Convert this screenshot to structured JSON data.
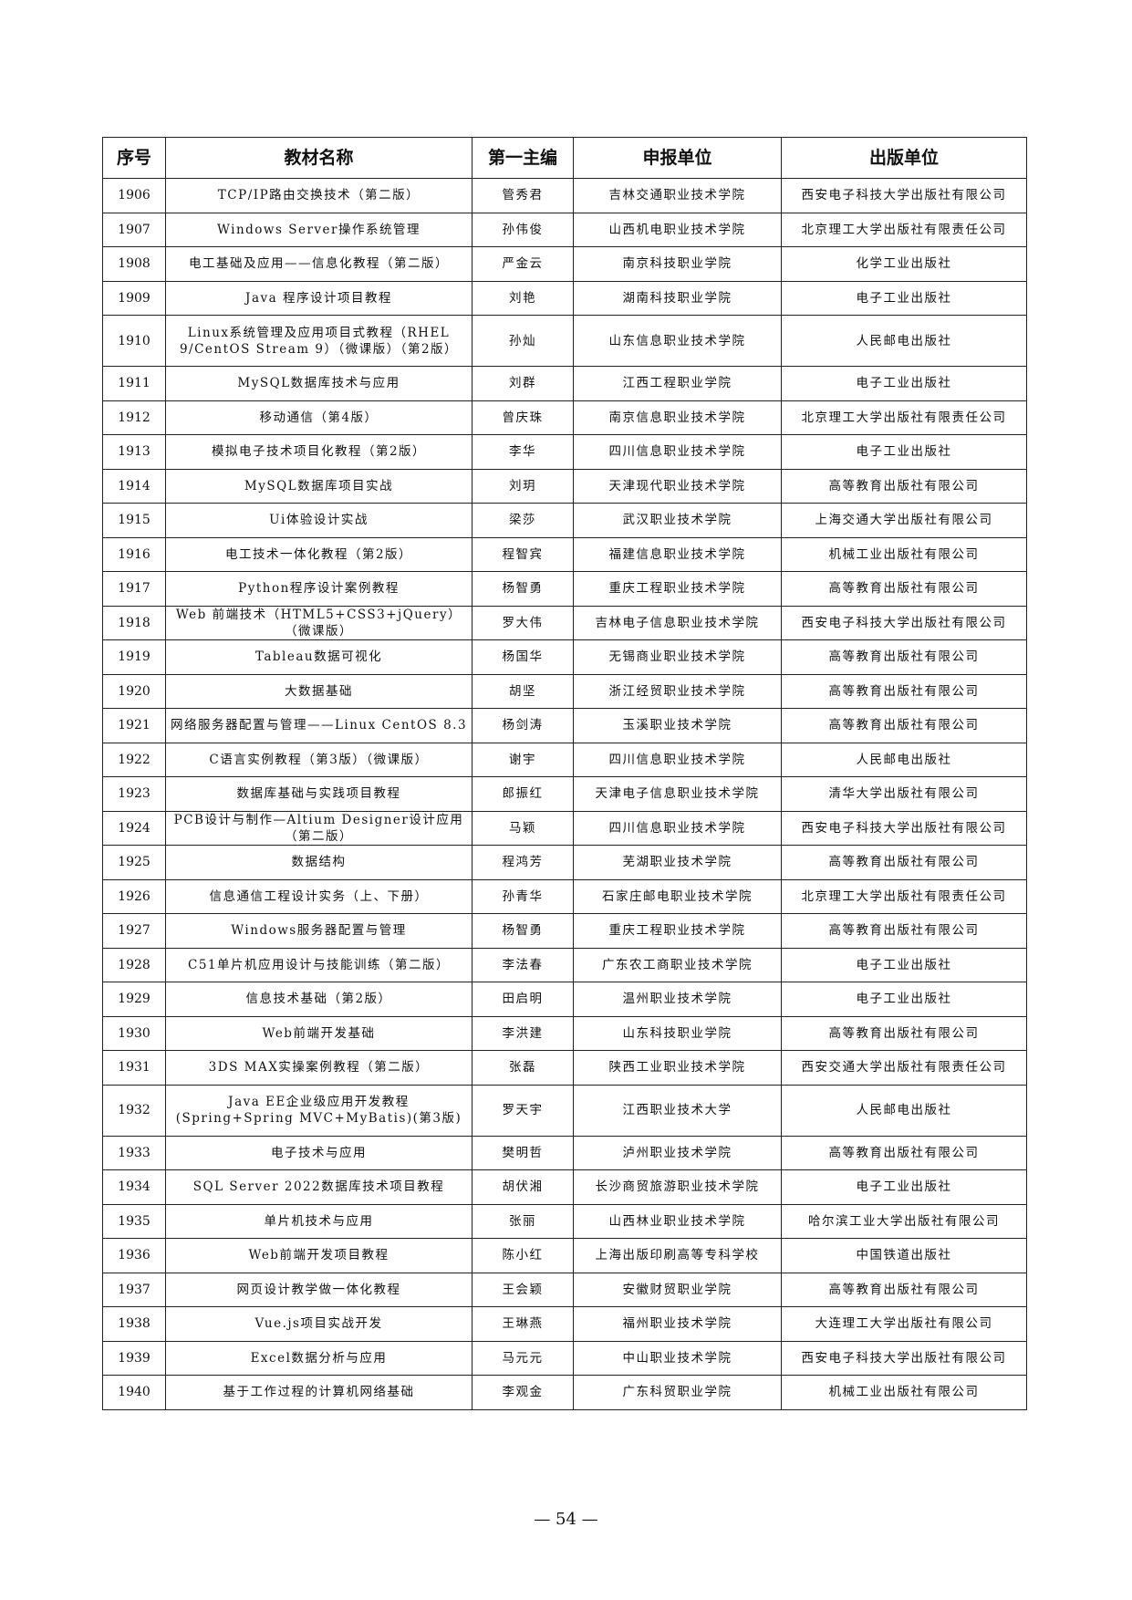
{
  "table": {
    "headers": [
      "序号",
      "教材名称",
      "第一主编",
      "申报单位",
      "出版单位"
    ],
    "rows": [
      [
        "1906",
        "TCP/IP路由交换技术（第二版）",
        "管秀君",
        "吉林交通职业技术学院",
        "西安电子科技大学出版社有限公司"
      ],
      [
        "1907",
        "Windows Server操作系统管理",
        "孙伟俊",
        "山西机电职业技术学院",
        "北京理工大学出版社有限责任公司"
      ],
      [
        "1908",
        "电工基础及应用——信息化教程（第二版）",
        "严金云",
        "南京科技职业学院",
        "化学工业出版社"
      ],
      [
        "1909",
        "Java 程序设计项目教程",
        "刘艳",
        "湖南科技职业学院",
        "电子工业出版社"
      ],
      [
        "1910",
        "Linux系统管理及应用项目式教程（RHEL 9/CentOS Stream 9）（微课版）（第2版）",
        "孙灿",
        "山东信息职业技术学院",
        "人民邮电出版社"
      ],
      [
        "1911",
        "MySQL数据库技术与应用",
        "刘群",
        "江西工程职业学院",
        "电子工业出版社"
      ],
      [
        "1912",
        "移动通信（第4版）",
        "曾庆珠",
        "南京信息职业技术学院",
        "北京理工大学出版社有限责任公司"
      ],
      [
        "1913",
        "模拟电子技术项目化教程（第2版）",
        "李华",
        "四川信息职业技术学院",
        "电子工业出版社"
      ],
      [
        "1914",
        "MySQL数据库项目实战",
        "刘玥",
        "天津现代职业技术学院",
        "高等教育出版社有限公司"
      ],
      [
        "1915",
        "Ui体验设计实战",
        "梁莎",
        "武汉职业技术学院",
        "上海交通大学出版社有限公司"
      ],
      [
        "1916",
        "电工技术一体化教程（第2版）",
        "程智宾",
        "福建信息职业技术学院",
        "机械工业出版社有限公司"
      ],
      [
        "1917",
        "Python程序设计案例教程",
        "杨智勇",
        "重庆工程职业技术学院",
        "高等教育出版社有限公司"
      ],
      [
        "1918",
        "Web 前端技术（HTML5+CSS3+jQuery）（微课版）",
        "罗大伟",
        "吉林电子信息职业技术学院",
        "西安电子科技大学出版社有限公司"
      ],
      [
        "1919",
        "Tableau数据可视化",
        "杨国华",
        "无锡商业职业技术学院",
        "高等教育出版社有限公司"
      ],
      [
        "1920",
        "大数据基础",
        "胡坚",
        "浙江经贸职业技术学院",
        "高等教育出版社有限公司"
      ],
      [
        "1921",
        "网络服务器配置与管理——Linux CentOS 8.3",
        "杨剑涛",
        "玉溪职业技术学院",
        "高等教育出版社有限公司"
      ],
      [
        "1922",
        "C语言实例教程（第3版）（微课版）",
        "谢宇",
        "四川信息职业技术学院",
        "人民邮电出版社"
      ],
      [
        "1923",
        "数据库基础与实践项目教程",
        "郎振红",
        "天津电子信息职业技术学院",
        "清华大学出版社有限公司"
      ],
      [
        "1924",
        "PCB设计与制作—Altium Designer设计应用（第二版）",
        "马颖",
        "四川信息职业技术学院",
        "西安电子科技大学出版社有限公司"
      ],
      [
        "1925",
        "数据结构",
        "程鸿芳",
        "芜湖职业技术学院",
        "高等教育出版社有限公司"
      ],
      [
        "1926",
        "信息通信工程设计实务（上、下册）",
        "孙青华",
        "石家庄邮电职业技术学院",
        "北京理工大学出版社有限责任公司"
      ],
      [
        "1927",
        "Windows服务器配置与管理",
        "杨智勇",
        "重庆工程职业技术学院",
        "高等教育出版社有限公司"
      ],
      [
        "1928",
        "C51单片机应用设计与技能训练（第二版）",
        "李法春",
        "广东农工商职业技术学院",
        "电子工业出版社"
      ],
      [
        "1929",
        "信息技术基础（第2版）",
        "田启明",
        "温州职业技术学院",
        "电子工业出版社"
      ],
      [
        "1930",
        "Web前端开发基础",
        "李洪建",
        "山东科技职业学院",
        "高等教育出版社有限公司"
      ],
      [
        "1931",
        "3DS MAX实操案例教程（第二版）",
        "张磊",
        "陕西工业职业技术学院",
        "西安交通大学出版社有限责任公司"
      ],
      [
        "1932",
        "Java EE企业级应用开发教程(Spring+Spring MVC+MyBatis)(第3版)",
        "罗天宇",
        "江西职业技术大学",
        "人民邮电出版社"
      ],
      [
        "1933",
        "电子技术与应用",
        "樊明哲",
        "泸州职业技术学院",
        "高等教育出版社有限公司"
      ],
      [
        "1934",
        "SQL Server 2022数据库技术项目教程",
        "胡伏湘",
        "长沙商贸旅游职业技术学院",
        "电子工业出版社"
      ],
      [
        "1935",
        "单片机技术与应用",
        "张丽",
        "山西林业职业技术学院",
        "哈尔滨工业大学出版社有限公司"
      ],
      [
        "1936",
        "Web前端开发项目教程",
        "陈小红",
        "上海出版印刷高等专科学校",
        "中国铁道出版社"
      ],
      [
        "1937",
        "网页设计教学做一体化教程",
        "王会颖",
        "安徽财贸职业学院",
        "高等教育出版社有限公司"
      ],
      [
        "1938",
        "Vue.js项目实战开发",
        "王琳燕",
        "福州职业技术学院",
        "大连理工大学出版社有限公司"
      ],
      [
        "1939",
        "Excel数据分析与应用",
        "马元元",
        "中山职业技术学院",
        "西安电子科技大学出版社有限公司"
      ],
      [
        "1940",
        "基于工作过程的计算机网络基础",
        "李观金",
        "广东科贸职业学院",
        "机械工业出版社有限公司"
      ]
    ]
  },
  "footer": {
    "page_number": "— 54 —"
  }
}
